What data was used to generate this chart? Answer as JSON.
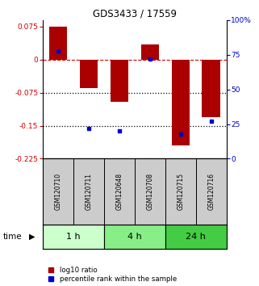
{
  "title": "GDS3433 / 17559",
  "samples": [
    "GSM120710",
    "GSM120711",
    "GSM120648",
    "GSM120708",
    "GSM120715",
    "GSM120716"
  ],
  "groups": [
    {
      "label": "1 h",
      "indices": [
        0,
        1
      ],
      "color": "#ccffcc"
    },
    {
      "label": "4 h",
      "indices": [
        2,
        3
      ],
      "color": "#88ee88"
    },
    {
      "label": "24 h",
      "indices": [
        4,
        5
      ],
      "color": "#44cc44"
    }
  ],
  "log10_ratio": [
    0.075,
    -0.065,
    -0.095,
    0.035,
    -0.195,
    -0.13
  ],
  "percentile_rank": [
    78,
    22,
    20,
    72,
    18,
    27
  ],
  "bar_color": "#aa0000",
  "dot_color": "#0000cc",
  "ylim_left": [
    -0.225,
    0.09
  ],
  "ylim_right": [
    0,
    100
  ],
  "yticks_left": [
    0.075,
    0.0,
    -0.075,
    -0.15,
    -0.225
  ],
  "yticks_right": [
    100,
    75,
    50,
    25,
    0
  ],
  "dotted_lines": [
    -0.075,
    -0.15
  ],
  "bar_width": 0.6,
  "background_color": "#ffffff",
  "time_label": "time",
  "legend_labels": [
    "log10 ratio",
    "percentile rank within the sample"
  ]
}
